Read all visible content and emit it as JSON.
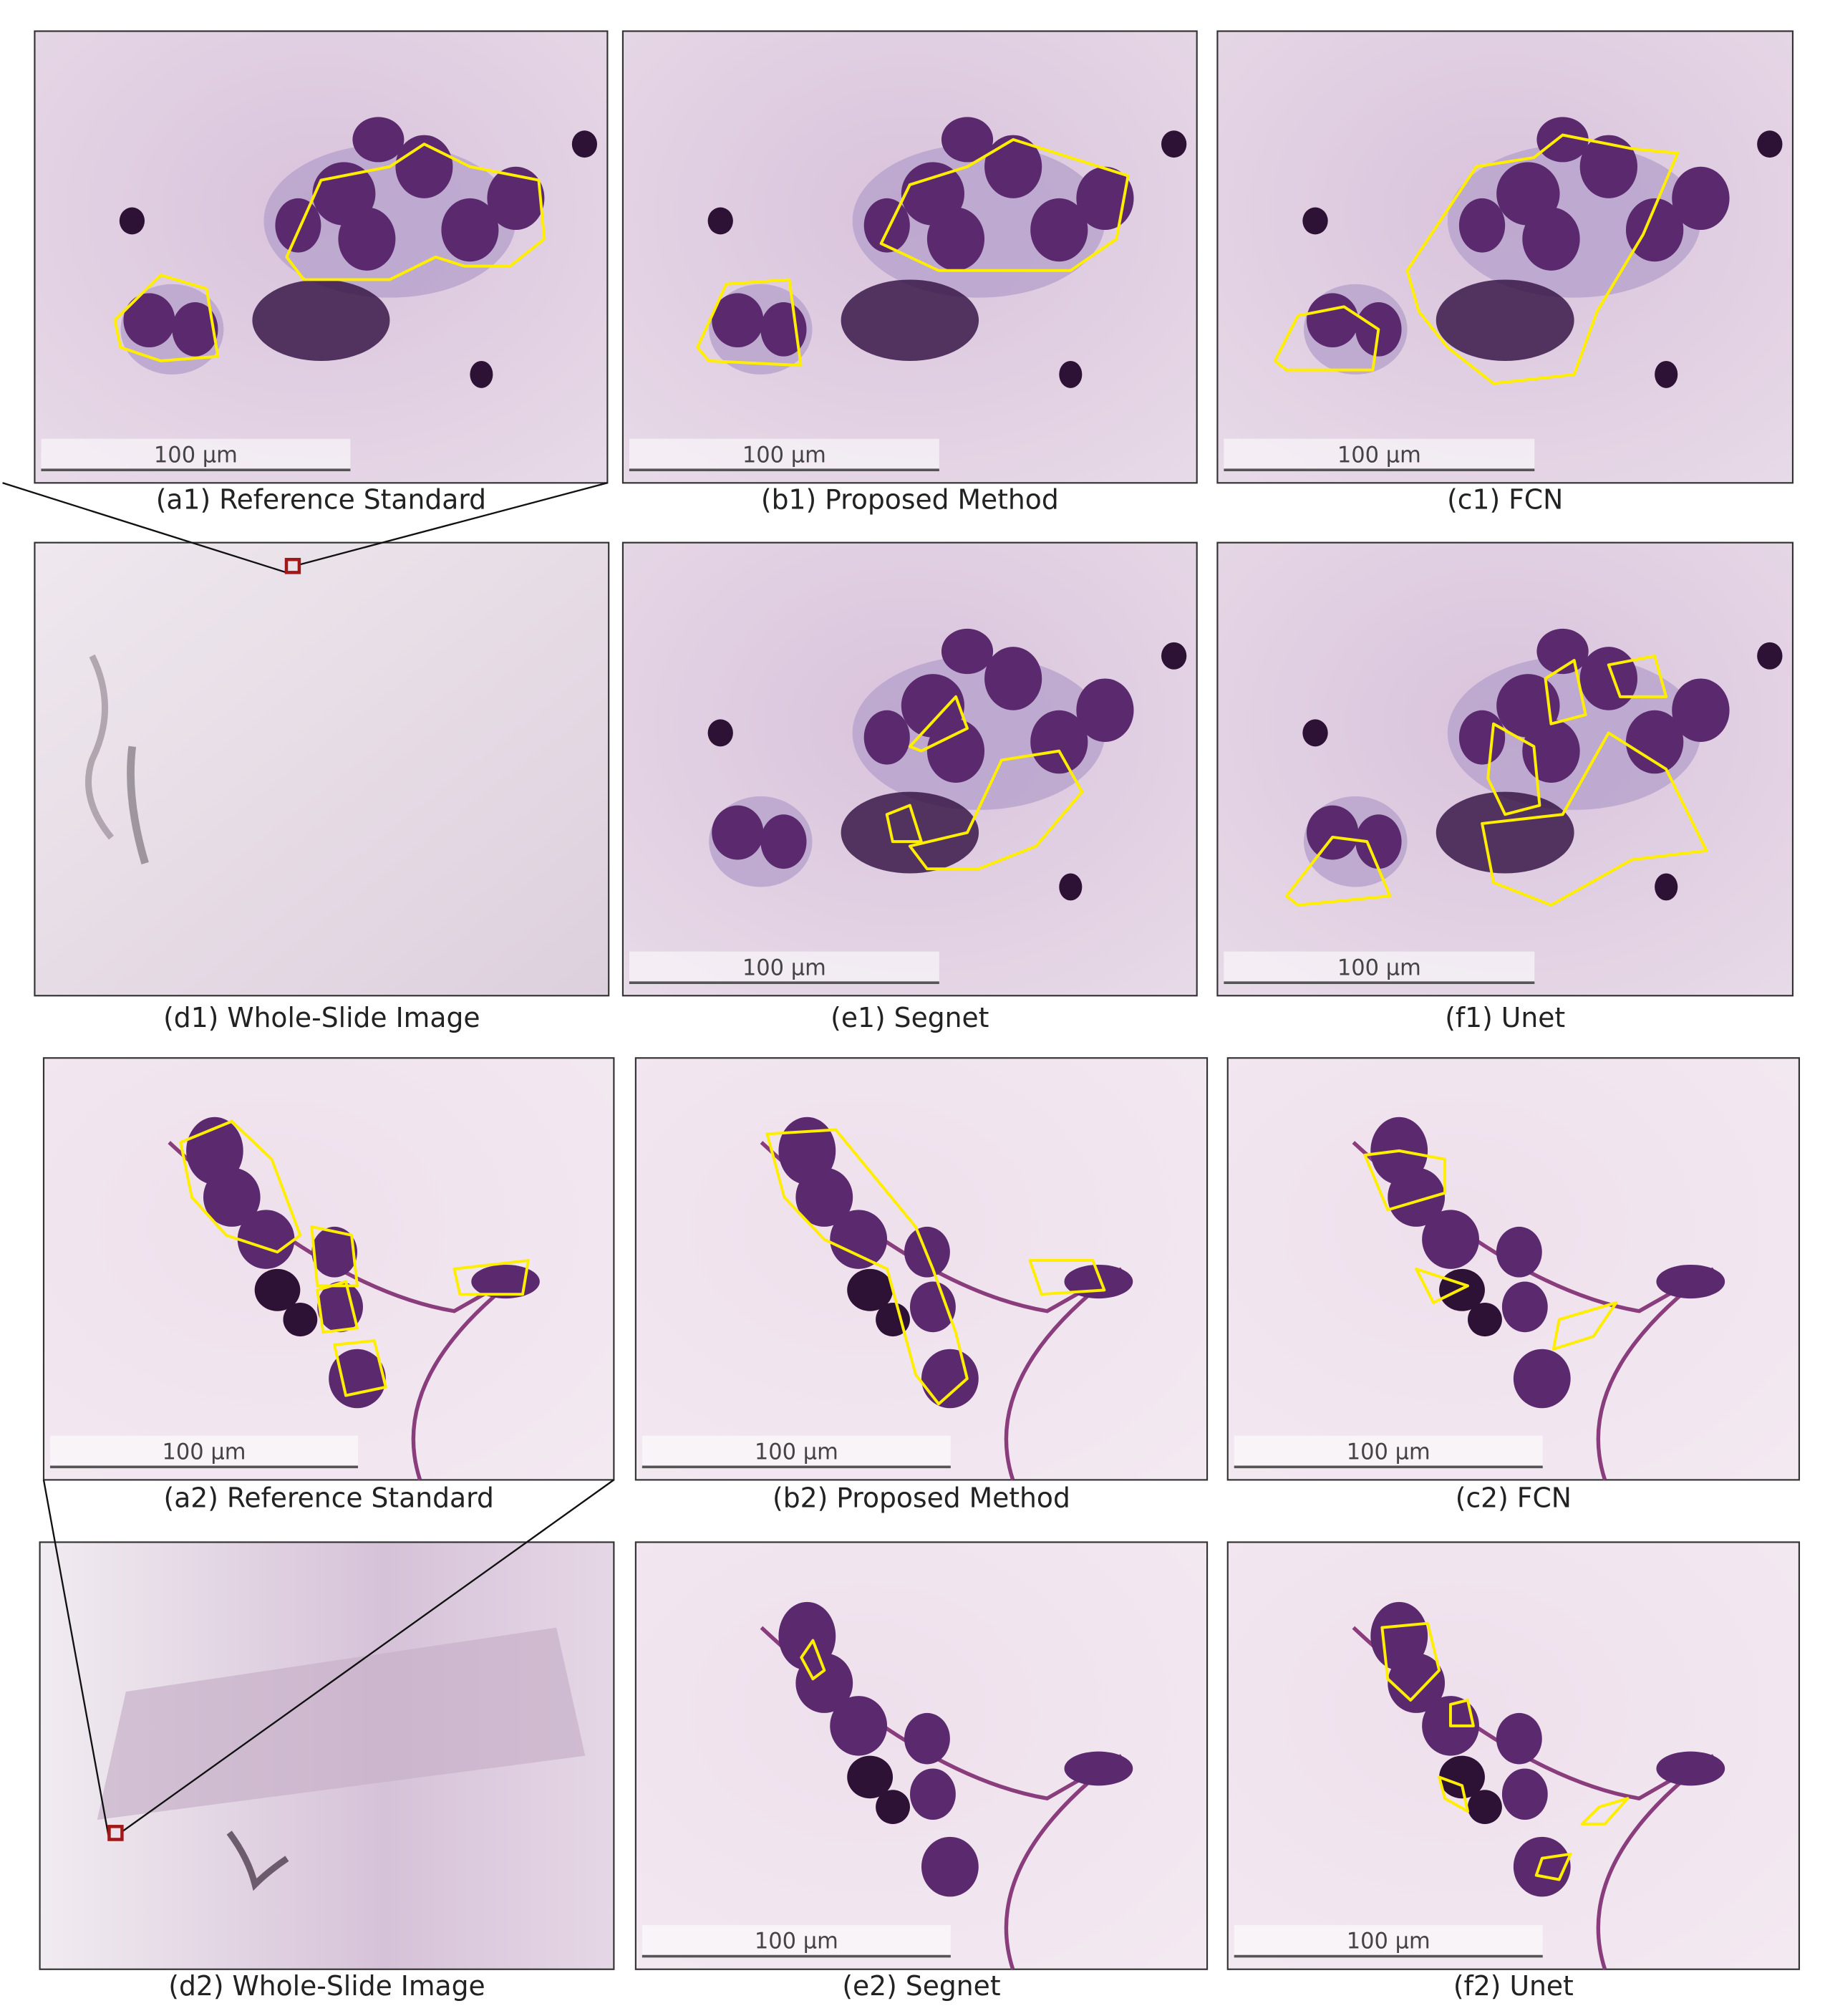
{
  "panels": [
    {
      "caption": "(a1) Reference Standard",
      "scale_bar": "100 µm"
    },
    {
      "caption": "(b1) Proposed Method",
      "scale_bar": "100 µm"
    },
    {
      "caption": "(c1) FCN",
      "scale_bar": "100 µm"
    },
    {
      "caption": "(d1) Whole-Slide Image"
    },
    {
      "caption": "(e1) Segnet",
      "scale_bar": "100 µm"
    },
    {
      "caption": "(f1) Unet",
      "scale_bar": "100 µm"
    },
    {
      "caption": "(a2) Reference Standard",
      "scale_bar": "100 µm"
    },
    {
      "caption": "(b2) Proposed Method",
      "scale_bar": "100 µm"
    },
    {
      "caption": "(c2) FCN",
      "scale_bar": "100 µm"
    },
    {
      "caption": "(d2) Whole-Slide Image"
    },
    {
      "caption": "(e2) Segnet",
      "scale_bar": "100 µm"
    },
    {
      "caption": "(f2) Unet",
      "scale_bar": "100 µm"
    }
  ]
}
